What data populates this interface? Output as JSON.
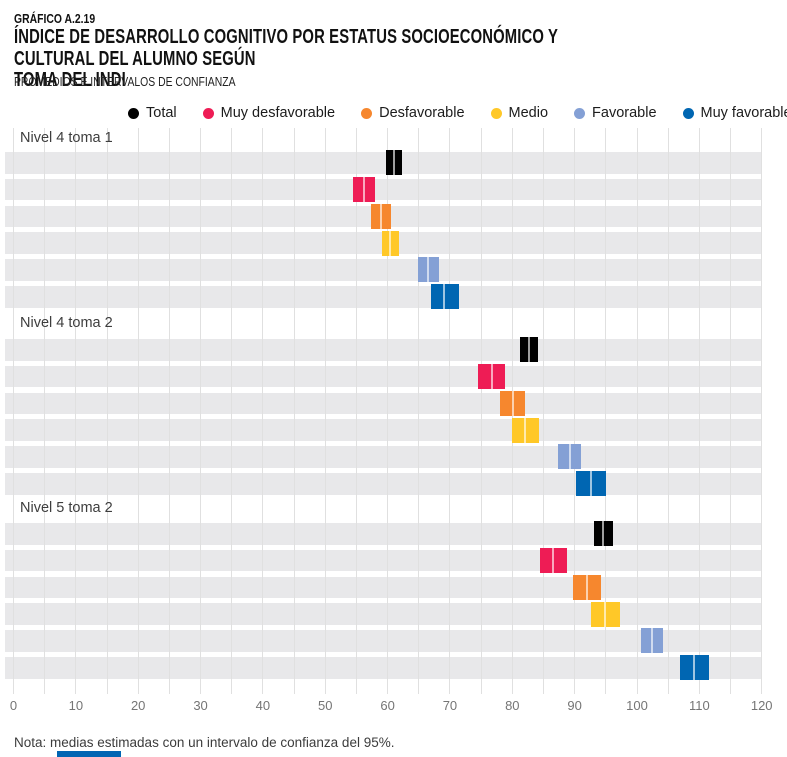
{
  "header": {
    "kicker": "GRÁFICO A.2.19",
    "title": "ÍNDICE DE DESARROLLO COGNITIVO POR ESTATUS SOCIOECONÓMICO Y CULTURAL DEL ALUMNO SEGÚN\nTOMA DEL INDI",
    "subtitle": "PROMEDIOS E INTERVALOS DE CONFIANZA"
  },
  "legend": [
    {
      "label": "Total",
      "color": "#000000"
    },
    {
      "label": "Muy desfavorable",
      "color": "#ee1c55"
    },
    {
      "label": "Desfavorable",
      "color": "#f6872e"
    },
    {
      "label": "Medio",
      "color": "#ffc828"
    },
    {
      "label": "Favorable",
      "color": "#84a0d5"
    },
    {
      "label": "Muy favorable",
      "color": "#0066b2"
    }
  ],
  "chart_data": {
    "type": "interval",
    "title": "ÍNDICE DE DESARROLLO COGNITIVO POR ESTATUS SOCIOECONÓMICO Y CULTURAL DEL ALUMNO SEGÚN TOMA DEL INDI",
    "subtitle": "PROMEDIOS E INTERVALOS DE CONFIANZA",
    "xlabel": "",
    "ylabel": "",
    "xlim": [
      0,
      120
    ],
    "xticks": [
      0,
      10,
      20,
      30,
      40,
      50,
      60,
      70,
      80,
      90,
      100,
      110,
      120
    ],
    "grid_interval": 5,
    "legend_position": "top",
    "grid": true,
    "groups": [
      {
        "label": "Nivel 4 toma 1",
        "rows": [
          {
            "category": "Total",
            "mean": 61.0,
            "ci_low": 59.7,
            "ci_high": 62.3
          },
          {
            "category": "Muy desfavorable",
            "mean": 56.2,
            "ci_low": 54.4,
            "ci_high": 58.0
          },
          {
            "category": "Desfavorable",
            "mean": 58.9,
            "ci_low": 57.3,
            "ci_high": 60.5
          },
          {
            "category": "Medio",
            "mean": 60.4,
            "ci_low": 59.1,
            "ci_high": 61.8
          },
          {
            "category": "Favorable",
            "mean": 66.5,
            "ci_low": 64.8,
            "ci_high": 68.3
          },
          {
            "category": "Muy favorable",
            "mean": 69.1,
            "ci_low": 66.9,
            "ci_high": 71.4
          }
        ]
      },
      {
        "label": "Nivel 4 toma 2",
        "rows": [
          {
            "category": "Total",
            "mean": 82.7,
            "ci_low": 81.3,
            "ci_high": 84.1
          },
          {
            "category": "Muy desfavorable",
            "mean": 76.7,
            "ci_low": 74.5,
            "ci_high": 78.9
          },
          {
            "category": "Desfavorable",
            "mean": 80.1,
            "ci_low": 78.1,
            "ci_high": 82.1
          },
          {
            "category": "Medio",
            "mean": 82.1,
            "ci_low": 79.9,
            "ci_high": 84.3
          },
          {
            "category": "Favorable",
            "mean": 89.2,
            "ci_low": 87.4,
            "ci_high": 91.0
          },
          {
            "category": "Muy favorable",
            "mean": 92.6,
            "ci_low": 90.2,
            "ci_high": 95.0
          }
        ]
      },
      {
        "label": "Nivel 5 toma 2",
        "rows": [
          {
            "category": "Total",
            "mean": 94.6,
            "ci_low": 93.1,
            "ci_high": 96.1
          },
          {
            "category": "Muy desfavorable",
            "mean": 86.6,
            "ci_low": 84.5,
            "ci_high": 88.7
          },
          {
            "category": "Desfavorable",
            "mean": 92.0,
            "ci_low": 89.7,
            "ci_high": 94.3
          },
          {
            "category": "Medio",
            "mean": 94.9,
            "ci_low": 92.6,
            "ci_high": 97.2
          },
          {
            "category": "Favorable",
            "mean": 102.4,
            "ci_low": 100.7,
            "ci_high": 104.1
          },
          {
            "category": "Muy favorable",
            "mean": 109.2,
            "ci_low": 106.9,
            "ci_high": 111.5
          }
        ]
      }
    ]
  },
  "note": "Nota: medias estimadas con un intervalo de confianza del 95%.",
  "colors": {
    "stripe": "#e8e8ea",
    "gridline": "#e0e0e0",
    "axis_text": "#757575",
    "footer_bar": "#0065b3"
  }
}
